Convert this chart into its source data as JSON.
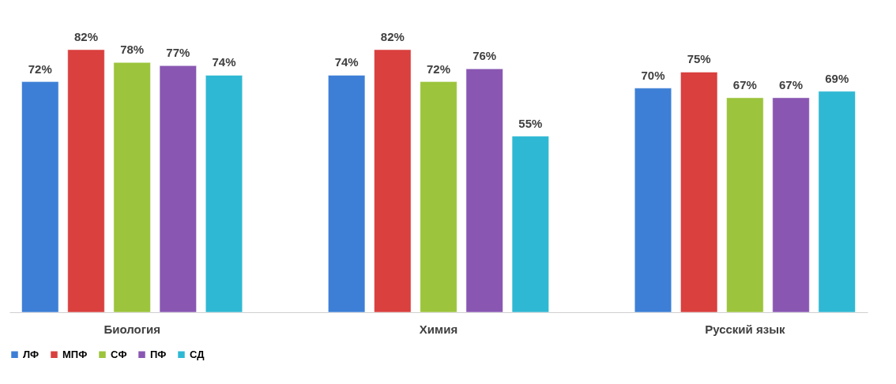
{
  "chart_data": {
    "type": "bar",
    "categories": [
      "Биология",
      "Химия",
      "Русский язык"
    ],
    "series": [
      {
        "name": "ЛФ",
        "color": "#3d7fd6",
        "values": [
          72,
          74,
          70
        ],
        "value_labels": [
          "72%",
          "74%",
          "70%"
        ]
      },
      {
        "name": "МПФ",
        "color": "#d9403e",
        "values": [
          82,
          82,
          75
        ],
        "value_labels": [
          "82%",
          "82%",
          "75%"
        ]
      },
      {
        "name": "СФ",
        "color": "#9cc43c",
        "values": [
          78,
          72,
          67
        ],
        "value_labels": [
          "78%",
          "72%",
          "67%"
        ]
      },
      {
        "name": "ПФ",
        "color": "#8957b2",
        "values": [
          77,
          76,
          67
        ],
        "value_labels": [
          "77%",
          "76%",
          "67%"
        ]
      },
      {
        "name": "СД",
        "color": "#2fb8d3",
        "values": [
          74,
          55,
          69
        ],
        "value_labels": [
          "74%",
          "55%",
          "69%"
        ]
      }
    ],
    "legend": "bottom"
  }
}
